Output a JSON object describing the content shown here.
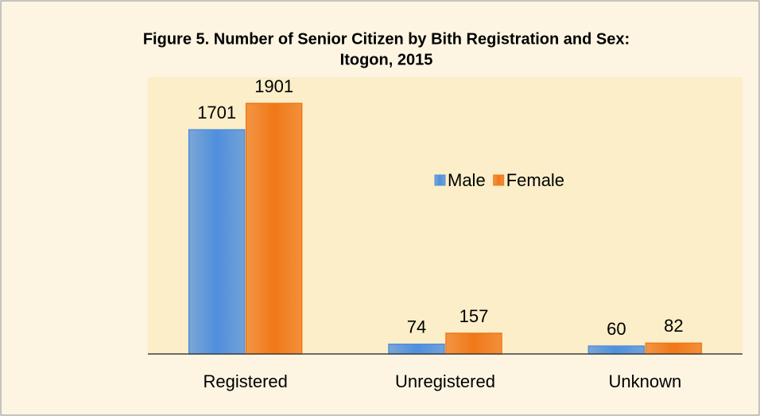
{
  "chart_data": {
    "type": "bar",
    "title": [
      "Figure 5. Number of Senior Citizen by Bith Registration and Sex:",
      "Itogon, 2015"
    ],
    "categories": [
      "Registered",
      "Unregistered",
      "Unknown"
    ],
    "series": [
      {
        "name": "Male",
        "color": "#4f8fdc",
        "values": [
          1701,
          74,
          60
        ]
      },
      {
        "name": "Female",
        "color": "#f07818",
        "values": [
          1901,
          157,
          82
        ]
      }
    ],
    "ylim": [
      0,
      2100
    ],
    "legend": "center"
  }
}
